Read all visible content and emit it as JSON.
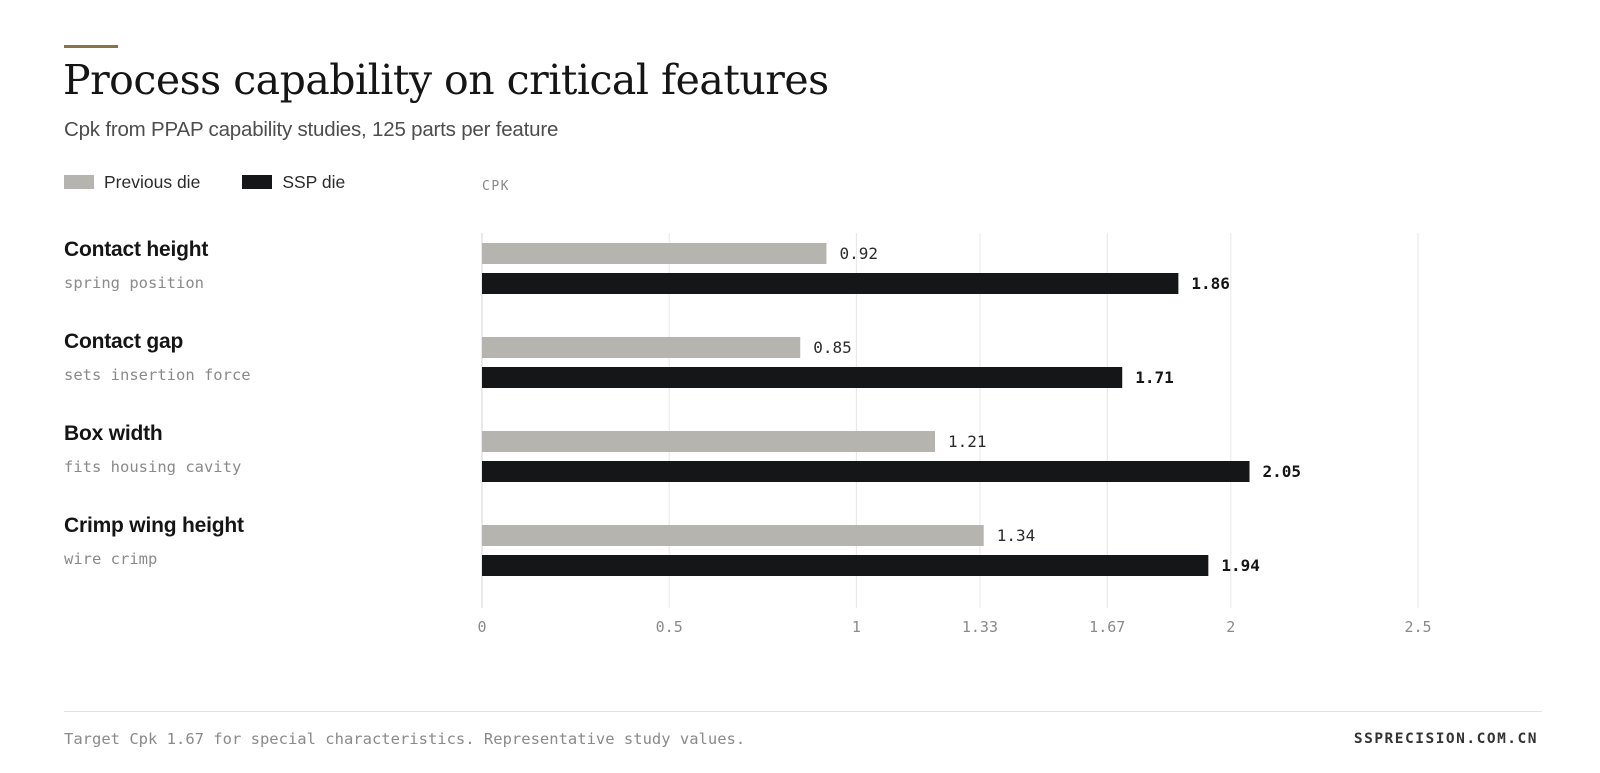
{
  "header": {
    "title": "Process capability on critical features",
    "subtitle": "Cpk from PPAP capability studies, 125 parts per feature"
  },
  "legend": [
    {
      "label": "Previous die",
      "color": "#b5b4ae"
    },
    {
      "label": "SSP die",
      "color": "#151617"
    }
  ],
  "accent_color": "#8b7349",
  "chart_data": {
    "type": "bar",
    "orientation": "horizontal",
    "xlabel": "CPK",
    "categories": [
      "Contact height",
      "Contact gap",
      "Box width",
      "Crimp wing height"
    ],
    "category_notes": [
      "spring position",
      "sets insertion force",
      "fits housing cavity",
      "wire crimp"
    ],
    "series": [
      {
        "name": "Previous die",
        "values": [
          0.92,
          0.85,
          1.21,
          1.34
        ],
        "color": "#b5b4ae"
      },
      {
        "name": "SSP die",
        "values": [
          1.86,
          1.71,
          2.05,
          1.94
        ],
        "color": "#151617"
      }
    ],
    "value_labels": [
      [
        "0.92",
        "0.85",
        "1.21",
        "1.34"
      ],
      [
        "1.86",
        "1.71",
        "2.05",
        "1.94"
      ]
    ],
    "xticks": [
      0,
      0.5,
      1,
      1.33,
      1.67,
      2,
      2.5
    ],
    "xtick_labels": [
      "0",
      "0.5",
      "1",
      "1.33",
      "1.67",
      "2",
      "2.5"
    ],
    "xlim": [
      0,
      2.5
    ],
    "grid": true,
    "legend_position": "top-left"
  },
  "footer": {
    "note": "Target Cpk 1.67 for special characteristics. Representative study values.",
    "brand": "SSPRECISION.COM.CN"
  }
}
